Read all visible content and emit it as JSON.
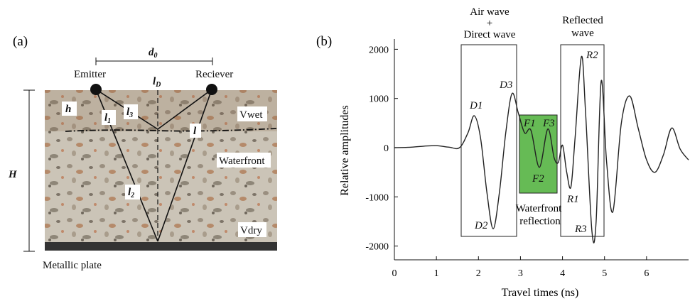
{
  "panel_a": {
    "label": "(a)",
    "d0": "d0",
    "emitter": "Emitter",
    "receiver": "Reciever",
    "lD": "lD",
    "h": "h",
    "l1": "l1",
    "l3": "l3",
    "vwet": "Vwet",
    "l": "l",
    "H": "H",
    "waterfront": "Waterfront",
    "l2": "l2",
    "vdry": "Vdry",
    "metallic_plate": "Metallic plate",
    "colors": {
      "concrete": "#c9c2b5",
      "plate": "#333333",
      "line": "#111111"
    }
  },
  "panel_b": {
    "label": "(b)",
    "air_wave": "Air wave",
    "plus": "+",
    "direct_wave": "Direct wave",
    "reflected": "Reflected",
    "wave": "wave",
    "waterfront": "Waterfront",
    "reflection": "reflection",
    "peaks": {
      "D1": "D1",
      "D2": "D2",
      "D3": "D3",
      "F1": "F1",
      "F2": "F2",
      "F3": "F3",
      "R1": "R1",
      "R2": "R2",
      "R3": "R3"
    },
    "colors": {
      "green_box": "#66bb55",
      "trace": "#222222"
    }
  },
  "chart_data": {
    "type": "line",
    "xlabel": "Travel times (ns)",
    "ylabel": "Relative amplitudes",
    "xlim": [
      0,
      7
    ],
    "ylim": [
      -2000,
      2100
    ],
    "xticks": [
      0,
      1,
      2,
      3,
      4,
      5,
      6
    ],
    "yticks": [
      2000,
      1000,
      0,
      -1000,
      -2000
    ],
    "grid": false,
    "series": [
      {
        "x": [
          0,
          0.4,
          0.7,
          1.0,
          1.3,
          1.55,
          1.75,
          1.9,
          2.05,
          2.2,
          2.35,
          2.5,
          2.65,
          2.8,
          2.95,
          3.1,
          3.25,
          3.45,
          3.65,
          3.8,
          3.9,
          4.0,
          4.1,
          4.2,
          4.3,
          4.45,
          4.55,
          4.7,
          4.8,
          4.92,
          5.05,
          5.2,
          5.4,
          5.6,
          5.8,
          6.0,
          6.2,
          6.4,
          6.6,
          6.8,
          7.0
        ],
        "y": [
          0,
          10,
          30,
          40,
          10,
          0,
          300,
          650,
          200,
          -900,
          -1650,
          -900,
          300,
          1100,
          700,
          300,
          350,
          -400,
          380,
          -200,
          -300,
          50,
          -500,
          -800,
          200,
          1850,
          700,
          -1700,
          -1500,
          1350,
          -300,
          -1300,
          500,
          1050,
          400,
          -250,
          -500,
          -150,
          400,
          -30,
          -250
        ]
      }
    ],
    "annotations": [
      "Air wave + Direct wave",
      "Reflected wave",
      "Waterfront reflection"
    ]
  }
}
